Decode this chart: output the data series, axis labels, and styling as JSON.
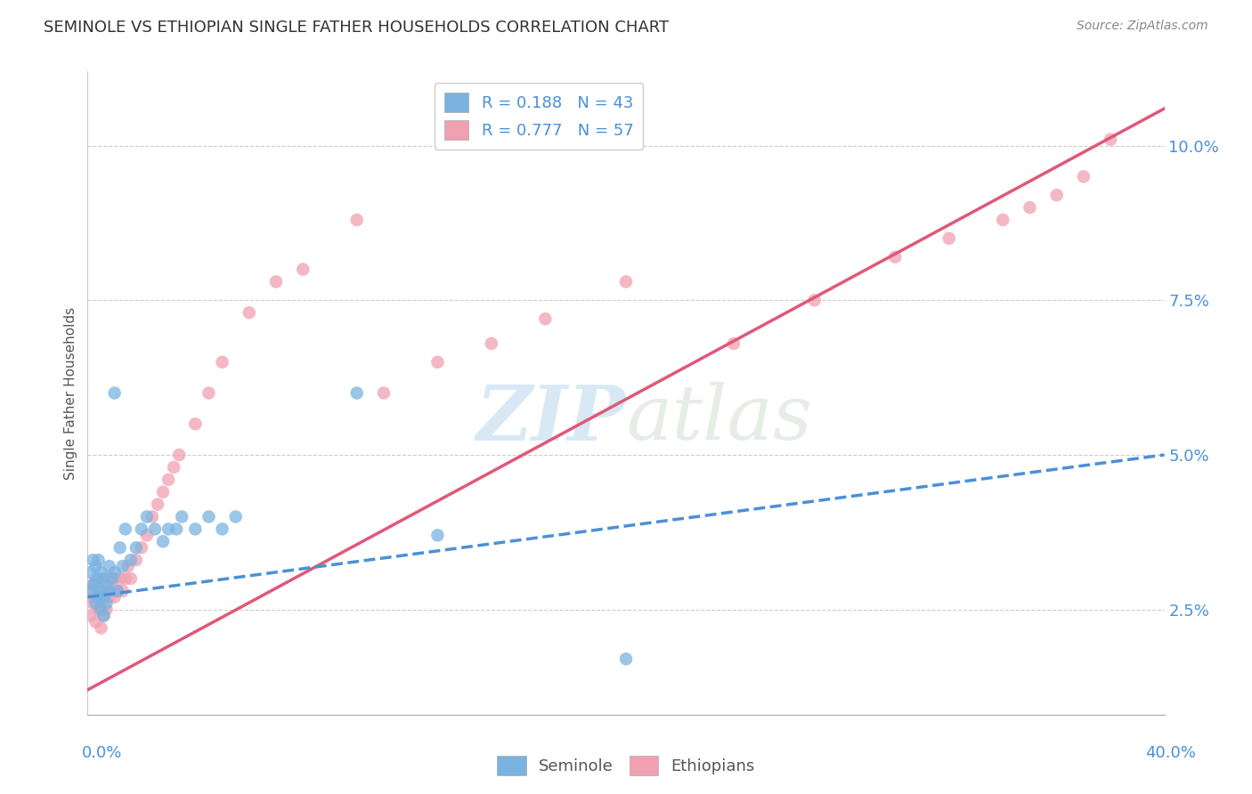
{
  "title": "SEMINOLE VS ETHIOPIAN SINGLE FATHER HOUSEHOLDS CORRELATION CHART",
  "source": "Source: ZipAtlas.com",
  "ylabel": "Single Father Households",
  "yticks": [
    0.025,
    0.05,
    0.075,
    0.1
  ],
  "ytick_labels": [
    "2.5%",
    "5.0%",
    "7.5%",
    "10.0%"
  ],
  "xlim": [
    0.0,
    0.4
  ],
  "ylim": [
    0.008,
    0.112
  ],
  "seminole_R": 0.188,
  "seminole_N": 43,
  "ethiopians_R": 0.777,
  "ethiopians_N": 57,
  "seminole_color": "#7ab3e0",
  "ethiopians_color": "#f0a0b0",
  "seminole_line_color": "#4a90d9",
  "ethiopians_line_color": "#e05878",
  "watermark_zip": "ZIP",
  "watermark_atlas": "atlas",
  "background_color": "#ffffff",
  "title_color": "#333333",
  "axis_label_color": "#4a90d9",
  "title_fontsize": 13,
  "axis_fontsize": 12,
  "seminole_x": [
    0.001,
    0.001,
    0.002,
    0.002,
    0.003,
    0.003,
    0.003,
    0.004,
    0.004,
    0.004,
    0.005,
    0.005,
    0.005,
    0.006,
    0.006,
    0.006,
    0.007,
    0.007,
    0.008,
    0.008,
    0.009,
    0.01,
    0.01,
    0.011,
    0.012,
    0.013,
    0.014,
    0.016,
    0.018,
    0.02,
    0.022,
    0.025,
    0.028,
    0.03,
    0.033,
    0.035,
    0.04,
    0.045,
    0.05,
    0.055,
    0.1,
    0.13,
    0.2
  ],
  "seminole_y": [
    0.031,
    0.028,
    0.033,
    0.029,
    0.032,
    0.029,
    0.026,
    0.033,
    0.03,
    0.027,
    0.031,
    0.028,
    0.025,
    0.03,
    0.027,
    0.024,
    0.029,
    0.026,
    0.032,
    0.028,
    0.03,
    0.06,
    0.031,
    0.028,
    0.035,
    0.032,
    0.038,
    0.033,
    0.035,
    0.038,
    0.04,
    0.038,
    0.036,
    0.038,
    0.038,
    0.04,
    0.038,
    0.04,
    0.038,
    0.04,
    0.06,
    0.037,
    0.017
  ],
  "ethiopians_x": [
    0.001,
    0.001,
    0.002,
    0.002,
    0.003,
    0.003,
    0.003,
    0.004,
    0.004,
    0.005,
    0.005,
    0.005,
    0.006,
    0.006,
    0.007,
    0.007,
    0.008,
    0.008,
    0.009,
    0.01,
    0.01,
    0.011,
    0.012,
    0.013,
    0.014,
    0.015,
    0.016,
    0.018,
    0.02,
    0.022,
    0.024,
    0.026,
    0.028,
    0.03,
    0.032,
    0.034,
    0.04,
    0.045,
    0.05,
    0.06,
    0.07,
    0.08,
    0.1,
    0.11,
    0.13,
    0.15,
    0.17,
    0.2,
    0.24,
    0.27,
    0.3,
    0.32,
    0.34,
    0.35,
    0.36,
    0.37,
    0.38
  ],
  "ethiopians_y": [
    0.027,
    0.024,
    0.029,
    0.026,
    0.03,
    0.027,
    0.023,
    0.027,
    0.025,
    0.028,
    0.025,
    0.022,
    0.027,
    0.024,
    0.028,
    0.025,
    0.03,
    0.027,
    0.028,
    0.03,
    0.027,
    0.028,
    0.03,
    0.028,
    0.03,
    0.032,
    0.03,
    0.033,
    0.035,
    0.037,
    0.04,
    0.042,
    0.044,
    0.046,
    0.048,
    0.05,
    0.055,
    0.06,
    0.065,
    0.073,
    0.078,
    0.08,
    0.088,
    0.06,
    0.065,
    0.068,
    0.072,
    0.078,
    0.068,
    0.075,
    0.082,
    0.085,
    0.088,
    0.09,
    0.092,
    0.095,
    0.101
  ],
  "sem_line_x0": 0.0,
  "sem_line_y0": 0.027,
  "sem_line_x1": 0.4,
  "sem_line_y1": 0.05,
  "eth_line_x0": 0.0,
  "eth_line_y0": 0.012,
  "eth_line_x1": 0.4,
  "eth_line_y1": 0.106
}
